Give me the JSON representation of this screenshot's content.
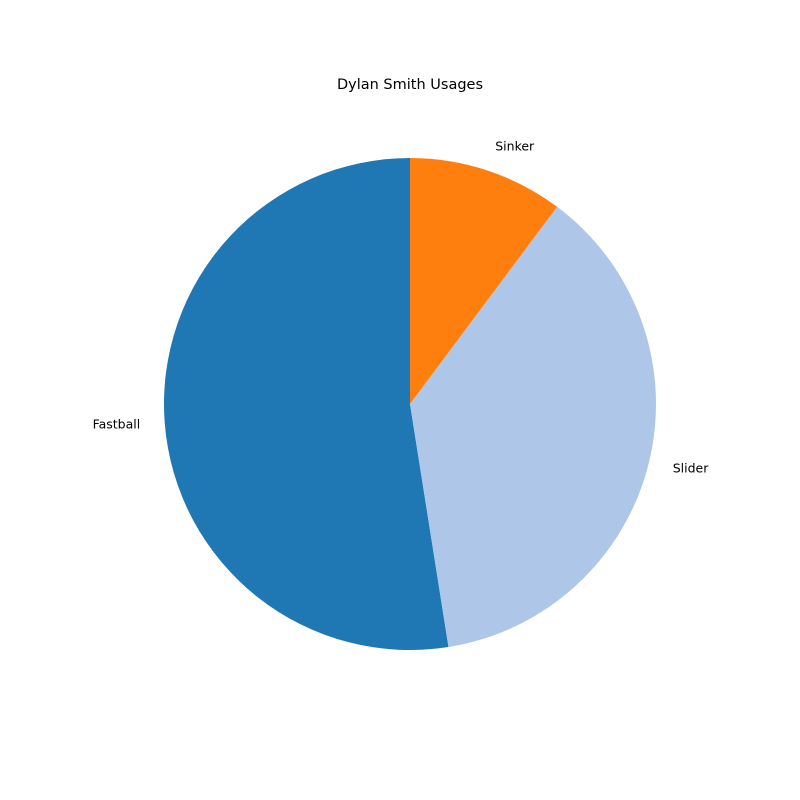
{
  "chart_data": {
    "type": "pie",
    "title": "Dylan Smith Usages",
    "start_angle_deg": 90,
    "direction": "counterclockwise",
    "slices": [
      {
        "label": "Fastball",
        "value": 52.5,
        "color": "#1f77b4"
      },
      {
        "label": "Slider",
        "value": 37.3,
        "color": "#aec7e8"
      },
      {
        "label": "Sinker",
        "value": 10.2,
        "color": "#ff7f0e"
      }
    ],
    "legend": "none"
  }
}
